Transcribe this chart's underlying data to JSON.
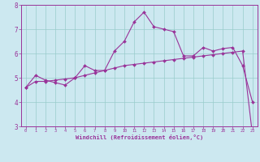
{
  "xlabel": "Windchill (Refroidissement éolien,°C)",
  "bg_color": "#cce8f0",
  "line_color": "#993399",
  "grid_color": "#99cccc",
  "hours": [
    0,
    1,
    2,
    3,
    4,
    5,
    6,
    7,
    8,
    9,
    10,
    11,
    12,
    13,
    14,
    15,
    16,
    17,
    18,
    19,
    20,
    21,
    22,
    23
  ],
  "line1": [
    4.6,
    5.1,
    4.9,
    4.8,
    4.7,
    5.0,
    5.5,
    5.3,
    5.3,
    6.1,
    6.5,
    7.3,
    7.7,
    7.1,
    7.0,
    6.9,
    5.9,
    5.9,
    6.25,
    6.1,
    6.2,
    6.25,
    5.5,
    4.0
  ],
  "line2": [
    4.6,
    4.85,
    4.85,
    4.9,
    4.95,
    5.0,
    5.1,
    5.2,
    5.3,
    5.4,
    5.5,
    5.55,
    5.6,
    5.65,
    5.7,
    5.75,
    5.8,
    5.85,
    5.9,
    5.95,
    6.0,
    6.05,
    6.1,
    2.65
  ],
  "ymin": 3,
  "ymax": 8,
  "xmin": 0,
  "xmax": 23
}
